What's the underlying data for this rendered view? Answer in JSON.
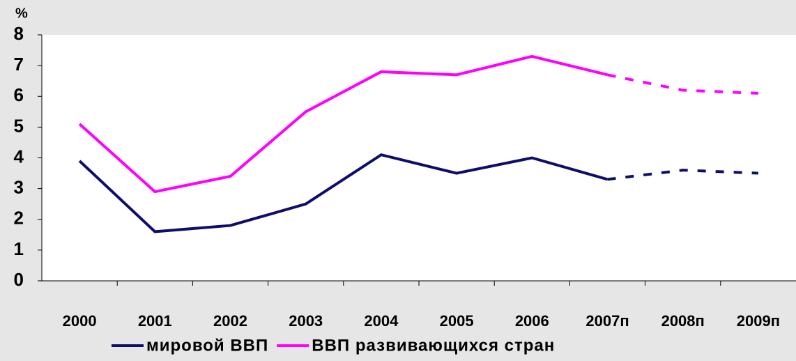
{
  "chart_data": {
    "type": "line",
    "y_label": "%",
    "categories": [
      "2000",
      "2001",
      "2002",
      "2003",
      "2004",
      "2005",
      "2006",
      "2007п",
      "2008п",
      "2009п"
    ],
    "series": [
      {
        "name": "мировой ВВП",
        "color": "#0d0d6b",
        "values": [
          3.9,
          1.6,
          1.8,
          2.5,
          4.1,
          3.5,
          4.0,
          3.3,
          3.6,
          3.5
        ]
      },
      {
        "name": "ВВП развивающихся стран",
        "color": "#ff00ff",
        "values": [
          5.1,
          2.9,
          3.4,
          5.5,
          6.8,
          6.7,
          7.3,
          6.7,
          6.2,
          6.1
        ]
      }
    ],
    "dashed_from": 7,
    "ylim": [
      0,
      8
    ],
    "yticks": [
      0,
      1,
      2,
      3,
      4,
      5,
      6,
      7,
      8
    ],
    "legend": "bottom"
  }
}
